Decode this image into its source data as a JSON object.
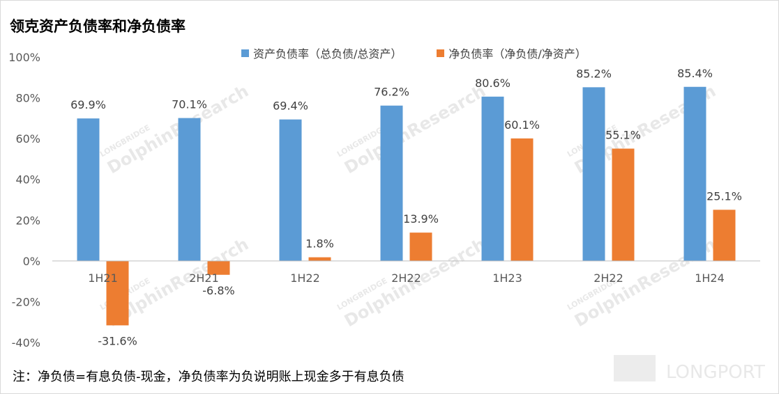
{
  "title": "领克资产负债率和净负债率",
  "footnote": "注：净负债=有息负债-现金，净负债率为负说明账上现金多于有息负债",
  "watermark": {
    "brand": "LONGBRIDGE",
    "name": "DolphinResearch",
    "logo": "LONGPORT"
  },
  "chart_data": {
    "type": "bar",
    "categories": [
      "1H21",
      "2H21",
      "1H22",
      "2H22",
      "1H23",
      "2H22",
      "1H24"
    ],
    "series": [
      {
        "name": "资产负债率（总负债/总资产）",
        "color": "#5b9bd5",
        "values": [
          69.9,
          70.1,
          69.4,
          76.2,
          80.6,
          85.2,
          85.4
        ],
        "labels": [
          "69.9%",
          "70.1%",
          "69.4%",
          "76.2%",
          "80.6%",
          "85.2%",
          "85.4%"
        ]
      },
      {
        "name": "净负债率（净负债/净资产）",
        "color": "#ed7d31",
        "values": [
          -31.6,
          -6.8,
          1.8,
          13.9,
          60.1,
          55.1,
          25.1
        ],
        "labels": [
          "-31.6%",
          "-6.8%",
          "1.8%",
          "13.9%",
          "60.1%",
          "55.1%",
          "25.1%"
        ]
      }
    ],
    "ylim": [
      -40,
      100
    ],
    "yticks": [
      100,
      80,
      60,
      40,
      20,
      0,
      -20,
      -40
    ],
    "ytick_labels": [
      "100%",
      "80%",
      "60%",
      "40%",
      "20%",
      "0%",
      "-20%",
      "-40%"
    ],
    "grid": false,
    "legend_position": "top-center"
  }
}
